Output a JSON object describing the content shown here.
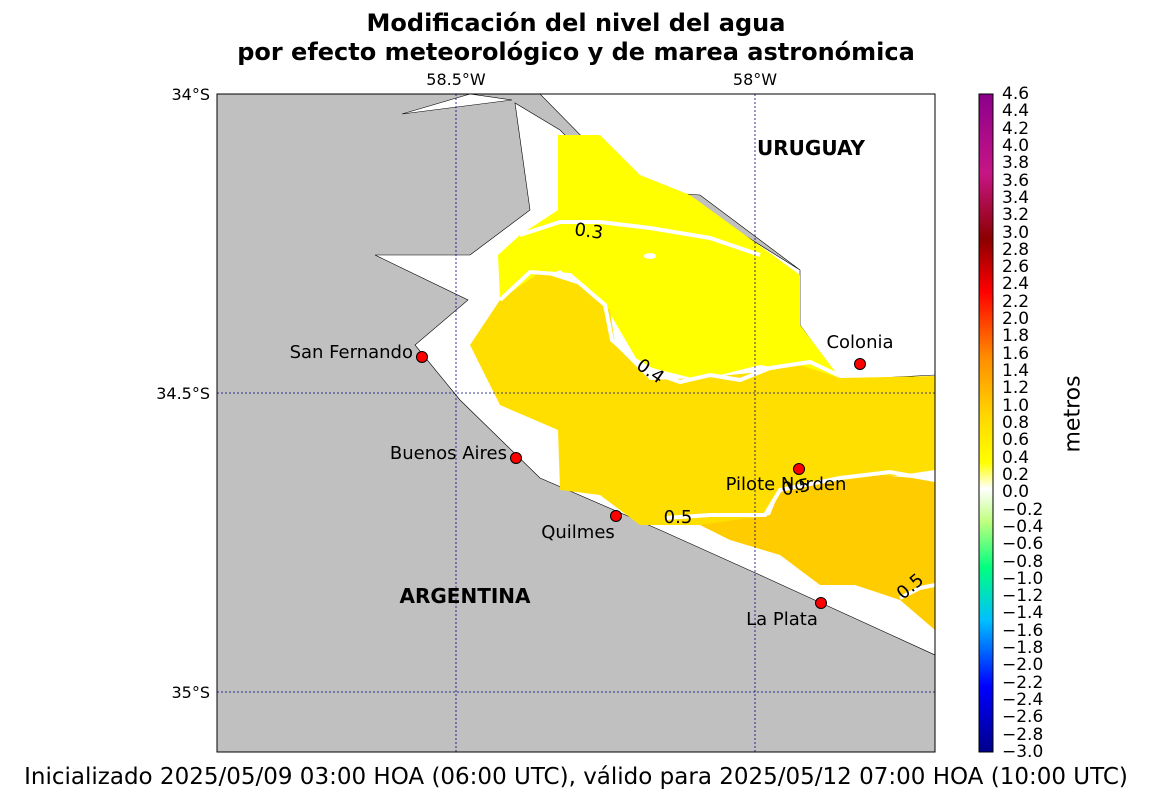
{
  "title": {
    "line1": "Modificación del nivel del agua",
    "line2": "por efecto meteorológico y de marea astronómica"
  },
  "footer": "Inicializado 2025/05/09 03:00 HOA (06:00 UTC), válido para 2025/05/12 07:00 HOA (10:00 UTC)",
  "map": {
    "lon_labels": [
      "58.5°W",
      "58°W"
    ],
    "lat_labels": [
      "34°S",
      "34.5°S",
      "35°S"
    ],
    "country_labels": [
      "URUGUAY",
      "ARGENTINA"
    ],
    "land_color": "#c0c0c0",
    "water_color": "#ffffff",
    "gridline_color": "#000080",
    "stations": [
      {
        "name": "San Fernando",
        "lon": -58.56,
        "lat": -34.44
      },
      {
        "name": "Buenos Aires",
        "lon": -58.4,
        "lat": -34.61
      },
      {
        "name": "Quilmes",
        "lon": -58.23,
        "lat": -34.71
      },
      {
        "name": "Pilote Norden",
        "lon": -57.92,
        "lat": -34.63
      },
      {
        "name": "Colonia",
        "lon": -57.83,
        "lat": -34.45
      },
      {
        "name": "La Plata",
        "lon": -57.89,
        "lat": -34.85
      }
    ],
    "station_marker_color": "#ff0000",
    "contours": [
      "0.3",
      "0.4",
      "0.5",
      "0.5",
      "0.5"
    ]
  },
  "colorbar": {
    "label": "metros",
    "ticks": [
      "4.6",
      "4.4",
      "4.2",
      "4.0",
      "3.8",
      "3.6",
      "3.4",
      "3.2",
      "3.0",
      "2.8",
      "2.6",
      "2.4",
      "2.2",
      "2.0",
      "1.8",
      "1.6",
      "1.4",
      "1.2",
      "1.0",
      "0.8",
      "0.6",
      "0.4",
      "0.2",
      "0.0",
      "−0.2",
      "−0.4",
      "−0.6",
      "−0.8",
      "−1.0",
      "−1.2",
      "−1.4",
      "−1.6",
      "−1.8",
      "−2.0",
      "−2.2",
      "−2.4",
      "−2.6",
      "−2.8",
      "−3.0"
    ],
    "stops": [
      "#8b008b",
      "#c71585",
      "#8b0000",
      "#ff0000",
      "#ff8c00",
      "#ffd700",
      "#ffff00",
      "#ffffff",
      "#7fff00",
      "#00ff7f",
      "#00bfff",
      "#0000ff",
      "#00008b"
    ]
  }
}
